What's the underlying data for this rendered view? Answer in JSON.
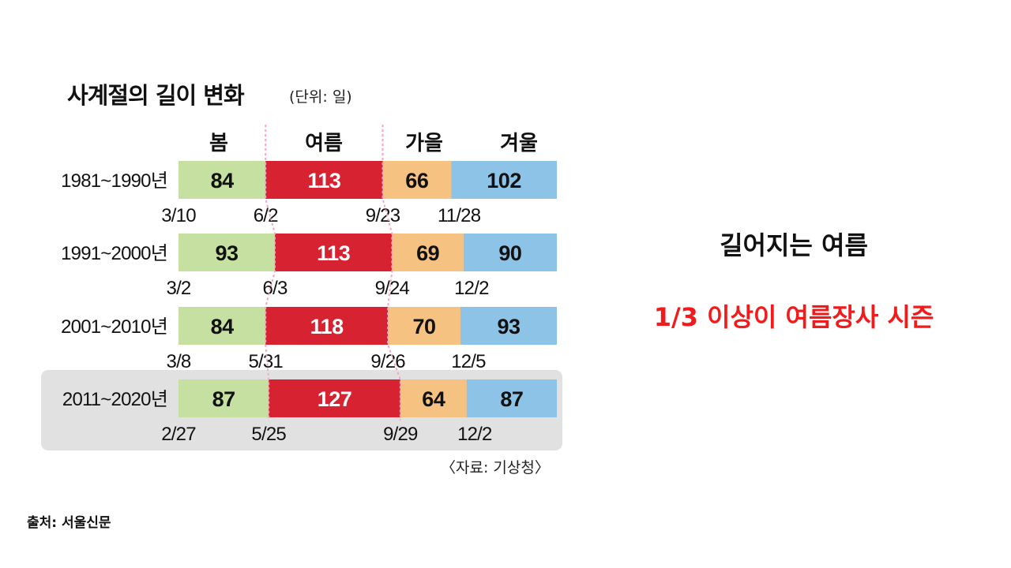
{
  "title": "사계절의 길이 변화",
  "unit": "(단위: 일)",
  "source_note": "〈자료: 기상청〉",
  "credit": "출처: 서울신문",
  "headline": "길어지는 여름",
  "subheadline": "1/3 이상이 여름장사 시즌",
  "colors": {
    "spring": "#c5e0a0",
    "summer": "#d72231",
    "autumn": "#f5c282",
    "winter": "#8ec3e8",
    "highlight_bg": "#e1e1e1",
    "divider": "#f2a6c4",
    "subheadline": "#f21b1b"
  },
  "chart_data": {
    "type": "bar",
    "stacked": true,
    "orientation": "horizontal",
    "categories": [
      "1981~1990년",
      "1991~2000년",
      "2001~2010년",
      "2011~2020년"
    ],
    "series": [
      {
        "name": "봄",
        "values": [
          84,
          93,
          84,
          87
        ]
      },
      {
        "name": "여름",
        "values": [
          113,
          113,
          118,
          127
        ]
      },
      {
        "name": "가을",
        "values": [
          66,
          69,
          70,
          64
        ]
      },
      {
        "name": "겨울",
        "values": [
          102,
          90,
          93,
          87
        ]
      }
    ],
    "start_dates": [
      [
        "3/10",
        "6/2",
        "9/23",
        "11/28"
      ],
      [
        "3/2",
        "6/3",
        "9/24",
        "12/2"
      ],
      [
        "3/8",
        "5/31",
        "9/26",
        "12/5"
      ],
      [
        "2/27",
        "5/25",
        "9/29",
        "12/2"
      ]
    ],
    "highlighted_category": "2011~2020년"
  }
}
